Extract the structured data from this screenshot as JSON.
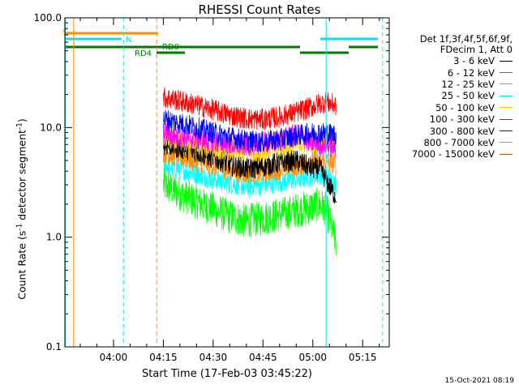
{
  "title": "RHESSI Count Rates",
  "xlabel": "Start Time (17-Feb-03 03:45:22)",
  "ylabel_prefix": "Count Rate (s",
  "ylabel_mid": " detector segment",
  "ylabel_suffix": ")",
  "ylabel_exp": "-1",
  "timestamp": "15-Oct-2021 08:19",
  "legend_header": [
    "Det 1f,3f,4f,5f,6f,9f,",
    "FDecim 1, Att 0"
  ],
  "chart_data": {
    "type": "line",
    "title": "RHESSI Count Rates",
    "xlabel": "Start Time (17-Feb-03 03:45:22)",
    "ylabel": "Count Rate (s-1 detector segment-1)",
    "yscale": "log",
    "xlim": [
      "03:45:22",
      "05:23"
    ],
    "ylim": [
      0.1,
      100.0
    ],
    "xticks": [
      "04:00",
      "04:15",
      "04:30",
      "04:45",
      "05:00",
      "05:15"
    ],
    "yticks": [
      "0.1",
      "1.0",
      "10.0",
      "100.0"
    ],
    "series": [
      {
        "name": "3 - 6 keV",
        "color": "#000000",
        "x": [
          "04:15",
          "04:20",
          "04:25",
          "04:30",
          "04:35",
          "04:40",
          "04:45",
          "04:50",
          "04:55",
          "05:00",
          "05:02",
          "05:04",
          "05:07"
        ],
        "y": [
          7.0,
          6.5,
          6.0,
          5.3,
          4.6,
          4.2,
          4.4,
          4.8,
          5.0,
          4.2,
          4.3,
          3.3,
          2.3
        ]
      },
      {
        "name": "6 - 12 keV",
        "color": "#ff00ff",
        "x": [
          "04:15",
          "04:20",
          "04:25",
          "04:30",
          "04:35",
          "04:40",
          "04:45",
          "04:50",
          "04:55",
          "05:00",
          "05:02",
          "05:04",
          "05:07"
        ],
        "y": [
          9.0,
          8.2,
          7.8,
          7.4,
          7.0,
          6.8,
          7.3,
          7.6,
          8.8,
          7.2,
          7.1,
          6.9,
          6.6
        ]
      },
      {
        "name": "12 - 25 keV",
        "color": "#00ff00",
        "x": [
          "04:15",
          "04:20",
          "04:25",
          "04:30",
          "04:35",
          "04:40",
          "04:45",
          "04:50",
          "04:55",
          "05:00",
          "05:02",
          "05:04",
          "05:07"
        ],
        "y": [
          3.0,
          2.5,
          2.1,
          1.8,
          1.55,
          1.4,
          1.5,
          1.6,
          1.75,
          1.9,
          2.0,
          1.8,
          0.9
        ]
      },
      {
        "name": "25 - 50 keV",
        "color": "#00ffff",
        "x": [
          "04:15",
          "04:20",
          "04:25",
          "04:30",
          "04:35",
          "04:40",
          "04:45",
          "04:50",
          "04:55",
          "05:00",
          "05:02",
          "05:04",
          "05:07"
        ],
        "y": [
          4.6,
          4.2,
          3.8,
          3.4,
          3.1,
          2.9,
          3.0,
          3.2,
          3.4,
          3.6,
          3.8,
          3.6,
          3.0
        ]
      },
      {
        "name": "50 - 100 keV",
        "color": "#ffcc00",
        "x": [
          "04:15",
          "04:20",
          "04:25",
          "04:30",
          "04:35",
          "04:40",
          "04:45",
          "04:50",
          "04:55",
          "05:00",
          "05:02",
          "05:04",
          "05:07"
        ],
        "y": [
          8.2,
          7.6,
          7.0,
          6.6,
          6.2,
          6.0,
          6.3,
          6.6,
          7.0,
          7.4,
          7.6,
          7.5,
          7.2
        ]
      },
      {
        "name": "100 - 300 keV",
        "color": "#ff0000",
        "x": [
          "04:15",
          "04:20",
          "04:25",
          "04:30",
          "04:35",
          "04:40",
          "04:45",
          "04:50",
          "04:55",
          "05:00",
          "05:02",
          "05:04",
          "05:07"
        ],
        "y": [
          19.0,
          17.5,
          16.0,
          14.5,
          13.0,
          12.0,
          11.8,
          12.5,
          13.8,
          15.5,
          16.5,
          17.0,
          16.0
        ]
      },
      {
        "name": "300 - 800 keV",
        "color": "#0000ff",
        "x": [
          "04:15",
          "04:20",
          "04:25",
          "04:30",
          "04:35",
          "04:40",
          "04:45",
          "04:50",
          "04:55",
          "05:00",
          "05:02",
          "05:04",
          "05:07"
        ],
        "y": [
          12.0,
          11.0,
          10.0,
          9.0,
          8.2,
          7.6,
          7.4,
          7.8,
          8.4,
          8.9,
          9.0,
          8.9,
          8.6
        ]
      },
      {
        "name": "800 - 7000 keV",
        "color": "#ff8c00",
        "x": [
          "04:15",
          "04:20",
          "04:25",
          "04:30",
          "04:35",
          "04:40",
          "04:45",
          "04:50",
          "04:55",
          "05:00",
          "05:02",
          "05:04",
          "05:07"
        ],
        "y": [
          6.0,
          5.4,
          4.9,
          4.5,
          4.1,
          3.8,
          3.9,
          4.2,
          4.5,
          4.9,
          5.0,
          4.9,
          4.6
        ]
      },
      {
        "name": "7000 - 15000 keV",
        "color": "#a05a00",
        "x": [],
        "y": []
      }
    ],
    "flags": {
      "saa_label": "S",
      "night_label": "N",
      "rd0_label": "RD0",
      "rd4_label": "RD4"
    },
    "markers": {
      "saa_vertical_solid": [
        "03:48"
      ],
      "night_vertical_solid": [
        "03:45:30",
        "05:04"
      ],
      "night_vertical_dashed": [
        "04:03",
        "05:21"
      ],
      "saa_vertical_dashed": [
        "04:13"
      ]
    },
    "grid": false,
    "legend_position": "right"
  }
}
